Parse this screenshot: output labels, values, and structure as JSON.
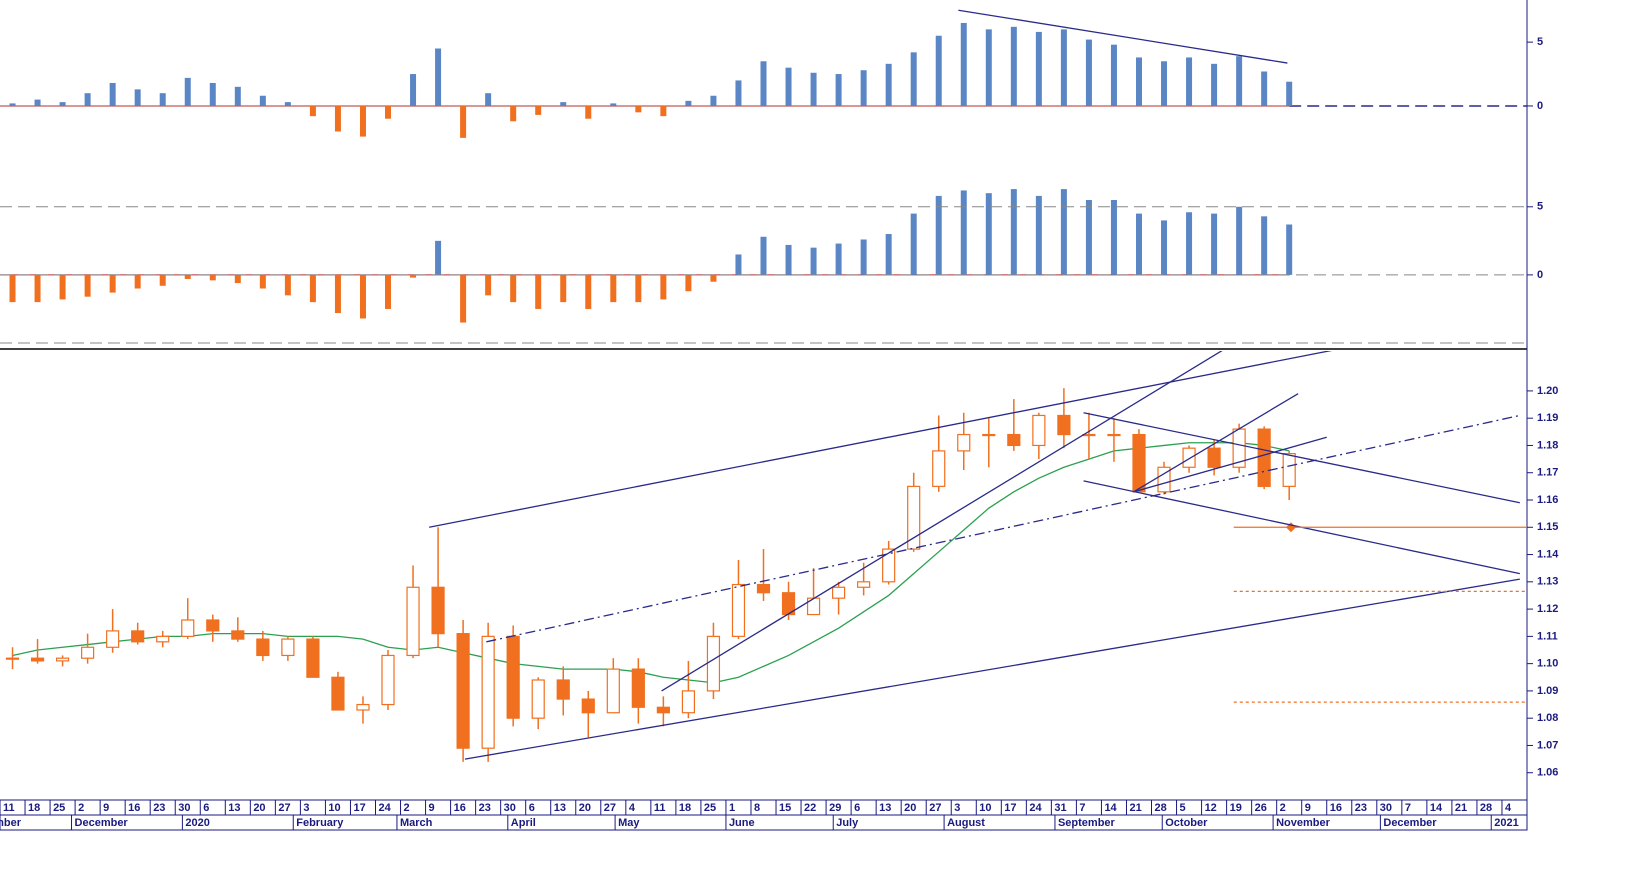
{
  "chart_data": [
    {
      "type": "bar",
      "color": "#5b86c5",
      "negative_color": "#f07020",
      "xlim": [
        "2019-11-11",
        "2021-01-11"
      ],
      "ylim": [
        -5.8,
        8.3
      ],
      "yticks": [
        0,
        5
      ],
      "grid": false,
      "x": [
        "2019-11-11",
        "2019-11-18",
        "2019-11-25",
        "2019-12-02",
        "2019-12-09",
        "2019-12-16",
        "2019-12-23",
        "2019-12-30",
        "2020-01-06",
        "2020-01-13",
        "2020-01-20",
        "2020-01-27",
        "2020-02-03",
        "2020-02-10",
        "2020-02-17",
        "2020-02-24",
        "2020-03-02",
        "2020-03-09",
        "2020-03-16",
        "2020-03-23",
        "2020-03-30",
        "2020-04-06",
        "2020-04-13",
        "2020-04-20",
        "2020-04-27",
        "2020-05-04",
        "2020-05-11",
        "2020-05-18",
        "2020-05-25",
        "2020-06-01",
        "2020-06-08",
        "2020-06-15",
        "2020-06-22",
        "2020-06-29",
        "2020-07-06",
        "2020-07-13",
        "2020-07-20",
        "2020-07-27",
        "2020-08-03",
        "2020-08-10",
        "2020-08-17",
        "2020-08-24",
        "2020-08-31",
        "2020-09-07",
        "2020-09-14",
        "2020-09-21",
        "2020-09-28",
        "2020-10-05",
        "2020-10-12",
        "2020-10-19",
        "2020-10-26",
        "2020-11-02"
      ],
      "values": [
        0.2,
        0.5,
        0.3,
        1.0,
        1.8,
        1.3,
        1.0,
        2.2,
        1.8,
        1.5,
        0.8,
        0.3,
        -0.8,
        -2,
        -2.4,
        -1,
        2.5,
        4.5,
        -2.5,
        1.0,
        -1.2,
        -0.7,
        0.3,
        -1,
        0.2,
        -0.5,
        -0.8,
        0.4,
        0.8,
        2.0,
        3.5,
        3.0,
        2.6,
        2.5,
        2.8,
        3.3,
        4.2,
        5.5,
        6.5,
        6.0,
        6.2,
        5.8,
        6.0,
        5.2,
        4.8,
        3.8,
        3.5,
        3.8,
        3.3,
        3.9,
        2.7,
        1.9
      ],
      "trendlines": [
        {
          "points": [
            [
              "2020-08-05",
              7.5
            ],
            [
              "2020-11-05",
              3.36
            ]
          ],
          "color": "#2a2a8a",
          "style": "solid"
        }
      ]
    },
    {
      "type": "bar",
      "color": "#5b86c5",
      "negative_color": "#f07020",
      "xlim": [
        "2019-11-11",
        "2021-01-11"
      ],
      "ylim": [
        -5,
        6.6
      ],
      "yticks": [
        0,
        5
      ],
      "grid": true,
      "x": [
        "2019-11-11",
        "2019-11-18",
        "2019-11-25",
        "2019-12-02",
        "2019-12-09",
        "2019-12-16",
        "2019-12-23",
        "2019-12-30",
        "2020-01-06",
        "2020-01-13",
        "2020-01-20",
        "2020-01-27",
        "2020-02-03",
        "2020-02-10",
        "2020-02-17",
        "2020-02-24",
        "2020-03-02",
        "2020-03-09",
        "2020-03-16",
        "2020-03-23",
        "2020-03-30",
        "2020-04-06",
        "2020-04-13",
        "2020-04-20",
        "2020-04-27",
        "2020-05-04",
        "2020-05-11",
        "2020-05-18",
        "2020-05-25",
        "2020-06-01",
        "2020-06-08",
        "2020-06-15",
        "2020-06-22",
        "2020-06-29",
        "2020-07-06",
        "2020-07-13",
        "2020-07-20",
        "2020-07-27",
        "2020-08-03",
        "2020-08-10",
        "2020-08-17",
        "2020-08-24",
        "2020-08-31",
        "2020-09-07",
        "2020-09-14",
        "2020-09-21",
        "2020-09-28",
        "2020-10-05",
        "2020-10-12",
        "2020-10-19",
        "2020-10-26",
        "2020-11-02"
      ],
      "values": [
        -2,
        -2,
        -1.8,
        -1.6,
        -1.3,
        -1.0,
        -0.8,
        -0.3,
        -0.4,
        -0.6,
        -1.0,
        -1.5,
        -2,
        -2.8,
        -3.2,
        -2.5,
        -0.2,
        2.5,
        -3.5,
        -1.5,
        -2.0,
        -2.5,
        -2.0,
        -2.5,
        -2.0,
        -2.0,
        -1.8,
        -1.2,
        -0.5,
        1.5,
        2.8,
        2.2,
        2.0,
        2.3,
        2.6,
        3.0,
        4.5,
        5.8,
        6.2,
        6.0,
        6.3,
        5.8,
        6.3,
        5.5,
        5.5,
        4.5,
        4.0,
        4.6,
        4.5,
        5.0,
        4.3,
        3.7
      ]
    },
    {
      "type": "candlestick",
      "color": "#f07020",
      "xlim": [
        "2019-11-11",
        "2021-01-11"
      ],
      "ylim": [
        1.05,
        1.215
      ],
      "yticks": [
        1.06,
        1.07,
        1.08,
        1.09,
        {
          "value": 1.1,
          "label": "1.10"
        },
        1.11,
        1.12,
        1.13,
        1.14,
        1.15,
        1.16,
        1.17,
        1.18,
        1.19,
        {
          "value": 1.2,
          "label": "1.20"
        }
      ],
      "x": [
        "2019-11-11",
        "2019-11-18",
        "2019-11-25",
        "2019-12-02",
        "2019-12-09",
        "2019-12-16",
        "2019-12-23",
        "2019-12-30",
        "2020-01-06",
        "2020-01-13",
        "2020-01-20",
        "2020-01-27",
        "2020-02-03",
        "2020-02-10",
        "2020-02-17",
        "2020-02-24",
        "2020-03-02",
        "2020-03-09",
        "2020-03-16",
        "2020-03-23",
        "2020-03-30",
        "2020-04-06",
        "2020-04-13",
        "2020-04-20",
        "2020-04-27",
        "2020-05-04",
        "2020-05-11",
        "2020-05-18",
        "2020-05-25",
        "2020-06-01",
        "2020-06-08",
        "2020-06-15",
        "2020-06-22",
        "2020-06-29",
        "2020-07-06",
        "2020-07-13",
        "2020-07-20",
        "2020-07-27",
        "2020-08-03",
        "2020-08-10",
        "2020-08-17",
        "2020-08-24",
        "2020-08-31",
        "2020-09-07",
        "2020-09-14",
        "2020-09-21",
        "2020-09-28",
        "2020-10-05",
        "2020-10-12",
        "2020-10-19",
        "2020-10-26",
        "2020-11-02"
      ],
      "open": [
        1.102,
        1.102,
        1.101,
        1.102,
        1.106,
        1.112,
        1.108,
        1.11,
        1.116,
        1.112,
        1.109,
        1.103,
        1.109,
        1.095,
        1.083,
        1.085,
        1.103,
        1.128,
        1.111,
        1.069,
        1.11,
        1.08,
        1.094,
        1.087,
        1.082,
        1.098,
        1.084,
        1.082,
        1.09,
        1.11,
        1.129,
        1.126,
        1.118,
        1.124,
        1.128,
        1.13,
        1.142,
        1.165,
        1.178,
        1.184,
        1.184,
        1.18,
        1.191,
        1.184,
        1.184,
        1.184,
        1.163,
        1.172,
        1.179,
        1.172,
        1.186,
        1.165
      ],
      "high": [
        1.106,
        1.109,
        1.103,
        1.111,
        1.12,
        1.115,
        1.112,
        1.124,
        1.118,
        1.117,
        1.112,
        1.11,
        1.11,
        1.097,
        1.088,
        1.105,
        1.136,
        1.15,
        1.116,
        1.115,
        1.114,
        1.095,
        1.099,
        1.09,
        1.102,
        1.102,
        1.088,
        1.101,
        1.115,
        1.138,
        1.142,
        1.13,
        1.135,
        1.13,
        1.137,
        1.145,
        1.17,
        1.191,
        1.192,
        1.19,
        1.197,
        1.192,
        1.201,
        1.192,
        1.19,
        1.186,
        1.174,
        1.18,
        1.182,
        1.188,
        1.187,
        1.178
      ],
      "low": [
        1.098,
        1.1,
        1.099,
        1.1,
        1.104,
        1.107,
        1.106,
        1.109,
        1.108,
        1.108,
        1.101,
        1.101,
        1.095,
        1.083,
        1.078,
        1.083,
        1.102,
        1.106,
        1.064,
        1.064,
        1.077,
        1.076,
        1.081,
        1.073,
        1.082,
        1.078,
        1.077,
        1.08,
        1.087,
        1.109,
        1.123,
        1.116,
        1.118,
        1.118,
        1.125,
        1.129,
        1.141,
        1.163,
        1.171,
        1.172,
        1.178,
        1.175,
        1.179,
        1.175,
        1.174,
        1.163,
        1.162,
        1.17,
        1.169,
        1.17,
        1.164,
        1.16
      ],
      "close": [
        1.102,
        1.101,
        1.102,
        1.106,
        1.112,
        1.108,
        1.11,
        1.116,
        1.112,
        1.109,
        1.103,
        1.109,
        1.095,
        1.083,
        1.085,
        1.103,
        1.128,
        1.111,
        1.069,
        1.11,
        1.08,
        1.094,
        1.087,
        1.082,
        1.098,
        1.084,
        1.082,
        1.09,
        1.11,
        1.129,
        1.126,
        1.118,
        1.124,
        1.128,
        1.13,
        1.142,
        1.165,
        1.178,
        1.184,
        1.184,
        1.18,
        1.191,
        1.184,
        1.184,
        1.184,
        1.163,
        1.172,
        1.179,
        1.172,
        1.186,
        1.165,
        1.177
      ],
      "moving_average": {
        "color": "#2ca050",
        "values": [
          1.103,
          1.105,
          1.106,
          1.107,
          1.108,
          1.109,
          1.11,
          1.11,
          1.111,
          1.111,
          1.111,
          1.11,
          1.11,
          1.11,
          1.109,
          1.106,
          1.105,
          1.106,
          1.104,
          1.102,
          1.1,
          1.099,
          1.098,
          1.098,
          1.098,
          1.097,
          1.095,
          1.094,
          1.093,
          1.095,
          1.099,
          1.103,
          1.108,
          1.113,
          1.119,
          1.125,
          1.133,
          1.141,
          1.149,
          1.157,
          1.163,
          1.168,
          1.172,
          1.175,
          1.178,
          1.179,
          1.18,
          1.181,
          1.181,
          1.181,
          1.18,
          1.178
        ]
      },
      "trendlines": [
        {
          "points": [
            [
              "2020-03-10",
              1.15
            ],
            [
              "2020-11-18",
              1.215
            ]
          ],
          "color": "#2a2a8a",
          "style": "solid"
        },
        {
          "points": [
            [
              "2020-03-20",
              1.065
            ],
            [
              "2021-01-09",
              1.131
            ]
          ],
          "color": "#2a2a8a",
          "style": "solid"
        },
        {
          "points": [
            [
              "2020-05-14",
              1.09
            ],
            [
              "2020-10-18",
              1.215
            ]
          ],
          "color": "#2a2a8a",
          "style": "solid"
        },
        {
          "points": [
            [
              "2020-03-26",
              1.108
            ],
            [
              "2021-01-09",
              1.191
            ]
          ],
          "color": "#2a2a8a",
          "style": "dashdot"
        },
        {
          "points": [
            [
              "2020-09-09",
              1.192
            ],
            [
              "2021-01-09",
              1.159
            ]
          ],
          "color": "#2a2a8a",
          "style": "solid"
        },
        {
          "points": [
            [
              "2020-09-09",
              1.167
            ],
            [
              "2021-01-09",
              1.133
            ]
          ],
          "color": "#2a2a8a",
          "style": "solid"
        },
        {
          "points": [
            [
              "2020-09-23",
              1.163
            ],
            [
              "2020-11-08",
              1.199
            ]
          ],
          "color": "#2a2a8a",
          "style": "solid"
        },
        {
          "points": [
            [
              "2020-09-23",
              1.163
            ],
            [
              "2020-11-16",
              1.183
            ]
          ],
          "color": "#2a2a8a",
          "style": "solid"
        },
        {
          "points": [
            [
              "2020-10-21",
              1.15
            ],
            [
              "2021-01-11",
              1.15
            ]
          ],
          "color": "#f07020",
          "style": "solid"
        },
        {
          "points": [
            [
              "2020-10-21",
              1.1265
            ],
            [
              "2021-01-11",
              1.1265
            ]
          ],
          "color": "#f07020",
          "style": "dotted"
        },
        {
          "points": [
            [
              "2020-10-21",
              1.0859
            ],
            [
              "2021-01-11",
              1.0859
            ]
          ],
          "color": "#f07020",
          "style": "dotted"
        }
      ],
      "markers": [
        {
          "x": "2020-11-06",
          "y": 1.15,
          "color": "#f07020"
        }
      ],
      "xticks": [
        {
          "value": "2019-11-11",
          "label": "11"
        },
        {
          "value": "2019-11-18",
          "label": "18"
        },
        {
          "value": "2019-11-25",
          "label": "25"
        },
        {
          "value": "2019-12-02",
          "label": "2"
        },
        {
          "value": "2019-12-09",
          "label": "9"
        },
        {
          "value": "2019-12-16",
          "label": "16"
        },
        {
          "value": "2019-12-23",
          "label": "23"
        },
        {
          "value": "2019-12-30",
          "label": "30"
        },
        {
          "value": "2020-01-06",
          "label": "6"
        },
        {
          "value": "2020-01-13",
          "label": "13"
        },
        {
          "value": "2020-01-20",
          "label": "20"
        },
        {
          "value": "2020-01-27",
          "label": "27"
        },
        {
          "value": "2020-02-03",
          "label": "3"
        },
        {
          "value": "2020-02-10",
          "label": "10"
        },
        {
          "value": "2020-02-17",
          "label": "17"
        },
        {
          "value": "2020-02-24",
          "label": "24"
        },
        {
          "value": "2020-03-02",
          "label": "2"
        },
        {
          "value": "2020-03-09",
          "label": "9"
        },
        {
          "value": "2020-03-16",
          "label": "16"
        },
        {
          "value": "2020-03-23",
          "label": "23"
        },
        {
          "value": "2020-03-30",
          "label": "30"
        },
        {
          "value": "2020-04-06",
          "label": "6"
        },
        {
          "value": "2020-04-13",
          "label": "13"
        },
        {
          "value": "2020-04-20",
          "label": "20"
        },
        {
          "value": "2020-04-27",
          "label": "27"
        },
        {
          "value": "2020-05-04",
          "label": "4"
        },
        {
          "value": "2020-05-11",
          "label": "11"
        },
        {
          "value": "2020-05-18",
          "label": "18"
        },
        {
          "value": "2020-05-25",
          "label": "25"
        },
        {
          "value": "2020-06-01",
          "label": "1"
        },
        {
          "value": "2020-06-08",
          "label": "8"
        },
        {
          "value": "2020-06-15",
          "label": "15"
        },
        {
          "value": "2020-06-22",
          "label": "22"
        },
        {
          "value": "2020-06-29",
          "label": "29"
        },
        {
          "value": "2020-07-06",
          "label": "6"
        },
        {
          "value": "2020-07-13",
          "label": "13"
        },
        {
          "value": "2020-07-20",
          "label": "20"
        },
        {
          "value": "2020-07-27",
          "label": "27"
        },
        {
          "value": "2020-08-03",
          "label": "3"
        },
        {
          "value": "2020-08-10",
          "label": "10"
        },
        {
          "value": "2020-08-17",
          "label": "17"
        },
        {
          "value": "2020-08-24",
          "label": "24"
        },
        {
          "value": "2020-08-31",
          "label": "31"
        },
        {
          "value": "2020-09-07",
          "label": "7"
        },
        {
          "value": "2020-09-14",
          "label": "14"
        },
        {
          "value": "2020-09-21",
          "label": "21"
        },
        {
          "value": "2020-09-28",
          "label": "28"
        },
        {
          "value": "2020-10-05",
          "label": "5"
        },
        {
          "value": "2020-10-12",
          "label": "12"
        },
        {
          "value": "2020-10-19",
          "label": "19"
        },
        {
          "value": "2020-10-26",
          "label": "26"
        },
        {
          "value": "2020-11-02",
          "label": "2"
        },
        {
          "value": "2020-11-09",
          "label": "9"
        },
        {
          "value": "2020-11-16",
          "label": "16"
        },
        {
          "value": "2020-11-23",
          "label": "23"
        },
        {
          "value": "2020-11-30",
          "label": "30"
        },
        {
          "value": "2020-12-07",
          "label": "7"
        },
        {
          "value": "2020-12-14",
          "label": "14"
        },
        {
          "value": "2020-12-21",
          "label": "21"
        },
        {
          "value": "2020-12-28",
          "label": "28"
        },
        {
          "value": "2021-01-04",
          "label": "4"
        }
      ],
      "months": [
        {
          "value": "2019-11-01",
          "label": "November"
        },
        {
          "value": "2019-12-01",
          "label": "December"
        },
        {
          "value": "2020-01-01",
          "label": "2020"
        },
        {
          "value": "2020-02-01",
          "label": "February"
        },
        {
          "value": "2020-03-01",
          "label": "March"
        },
        {
          "value": "2020-04-01",
          "label": "April"
        },
        {
          "value": "2020-05-01",
          "label": "May"
        },
        {
          "value": "2020-06-01",
          "label": "June"
        },
        {
          "value": "2020-07-01",
          "label": "July"
        },
        {
          "value": "2020-08-01",
          "label": "August"
        },
        {
          "value": "2020-09-01",
          "label": "September"
        },
        {
          "value": "2020-10-01",
          "label": "October"
        },
        {
          "value": "2020-11-01",
          "label": "November"
        },
        {
          "value": "2020-12-01",
          "label": "December"
        },
        {
          "value": "2021-01-01",
          "label": "2021"
        }
      ]
    }
  ]
}
